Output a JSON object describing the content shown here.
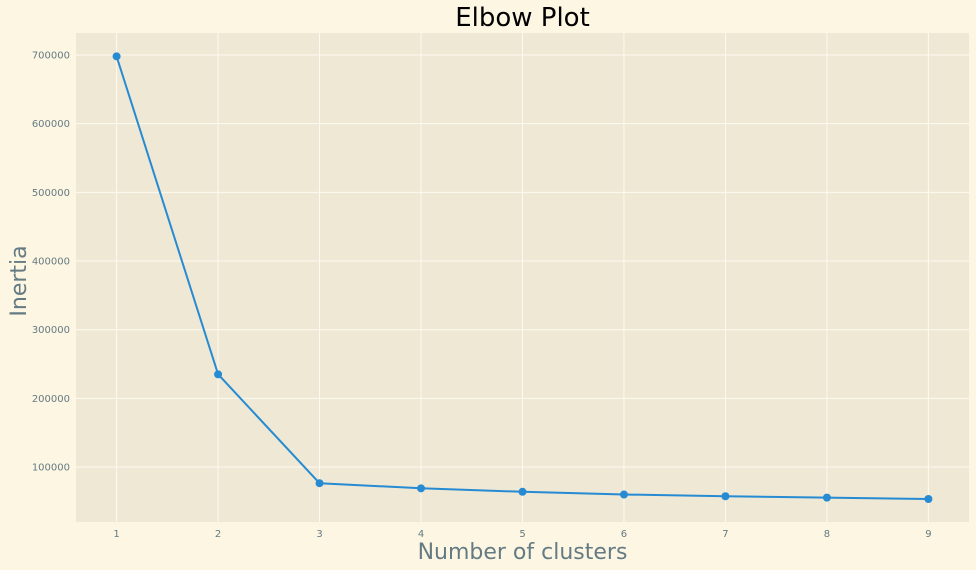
{
  "chart_data": {
    "type": "line",
    "title": "Elbow Plot",
    "xlabel": "Number of clusters",
    "ylabel": "Inertia",
    "x": [
      1,
      2,
      3,
      4,
      5,
      6,
      7,
      8,
      9
    ],
    "series": [
      {
        "values": [
          698000,
          235000,
          76500,
          69000,
          64000,
          60000,
          57500,
          55500,
          53500
        ]
      }
    ],
    "xticks": [
      1,
      2,
      3,
      4,
      5,
      6,
      7,
      8,
      9
    ],
    "yticks": [
      100000,
      200000,
      300000,
      400000,
      500000,
      600000,
      700000
    ],
    "xlim": [
      0.6,
      9.4
    ],
    "ylim": [
      20000,
      732000
    ],
    "grid": true,
    "colors": {
      "figure_bg": "#fdf6e3",
      "plot_bg": "#eee8d5",
      "grid": "#fdfaf0",
      "line": "#268bd2",
      "tick_text": "#657b83",
      "title_text": "#000000"
    }
  }
}
